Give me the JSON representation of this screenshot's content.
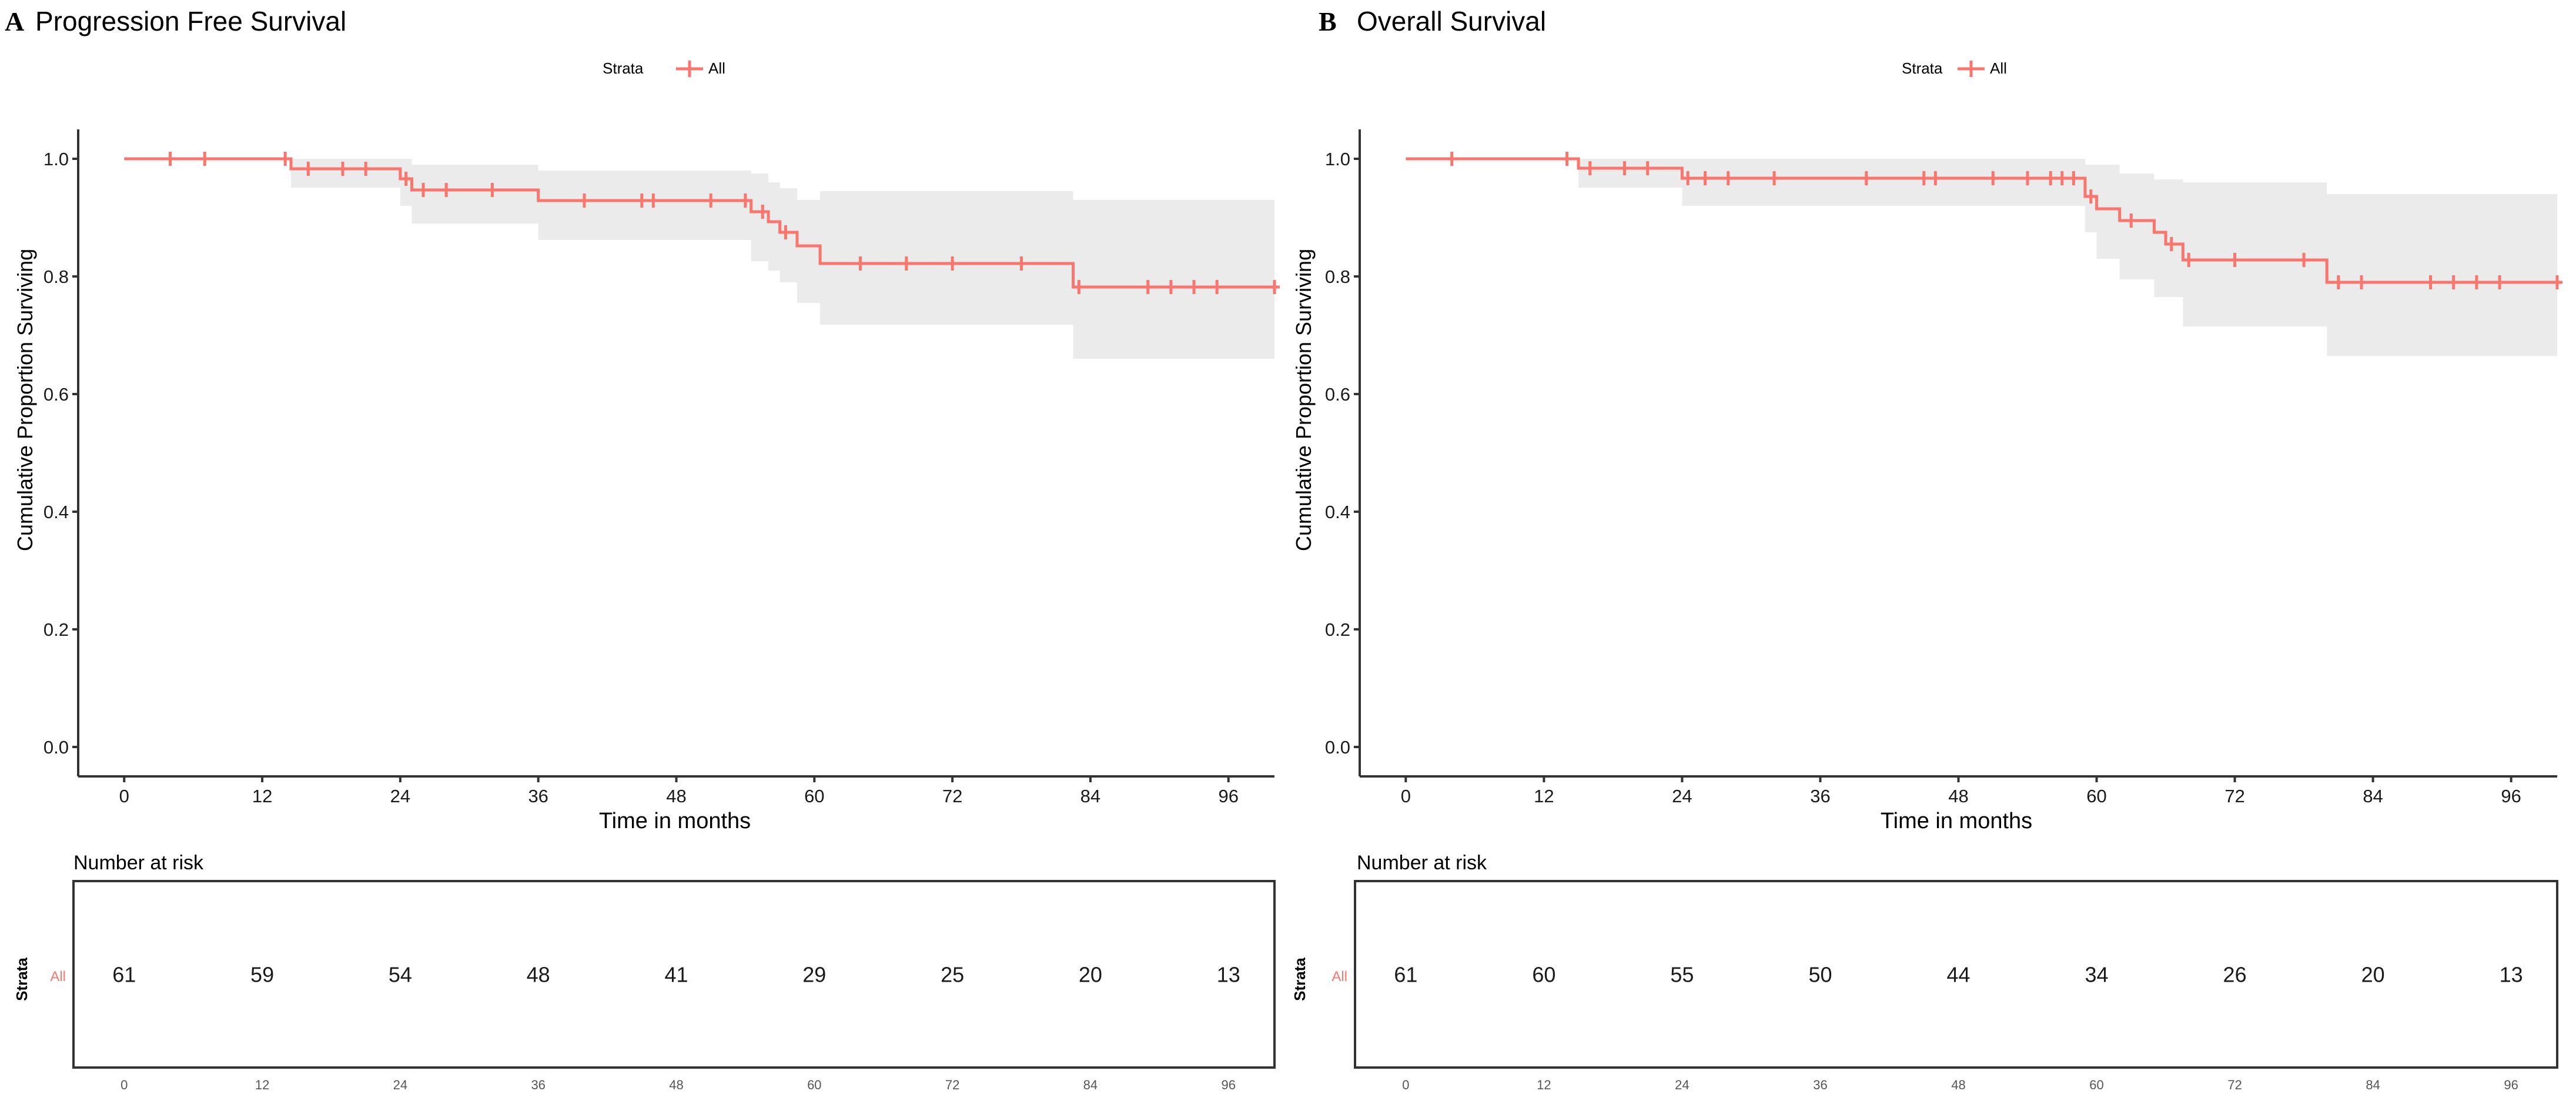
{
  "colors": {
    "curve": "#f8766d",
    "ci_band": "#ebebeb",
    "axis": "#333333",
    "text": "#1a1a1a"
  },
  "legend": {
    "title": "Strata",
    "label": "All"
  },
  "chart_data": [
    {
      "type": "line",
      "panel_letter": "A",
      "title": "Progression Free Survival",
      "xlabel": "Time in months",
      "ylabel": "Cumulative Proportion Surviving",
      "xlim": [
        -4,
        100
      ],
      "ylim": [
        -0.05,
        1.05
      ],
      "xticks": [
        0,
        12,
        24,
        36,
        48,
        60,
        72,
        84,
        96
      ],
      "yticks": [
        0.0,
        0.2,
        0.4,
        0.6,
        0.8,
        1.0
      ],
      "ytick_labels": [
        "0.0",
        "0.2",
        "0.4",
        "0.6",
        "0.8",
        "1.0"
      ],
      "series": [
        {
          "name": "All",
          "steps": [
            [
              0,
              1.0
            ],
            [
              14.5,
              0.983
            ],
            [
              24,
              0.966
            ],
            [
              25,
              0.947
            ],
            [
              36,
              0.929
            ],
            [
              54.5,
              0.91
            ],
            [
              56,
              0.893
            ],
            [
              57,
              0.875
            ],
            [
              58.5,
              0.852
            ],
            [
              60.5,
              0.822
            ],
            [
              82.5,
              0.782
            ],
            [
              100,
              0.782
            ]
          ],
          "ci": [
            [
              0,
              1.0,
              1.0
            ],
            [
              14.5,
              1.0,
              0.951
            ],
            [
              24,
              1.0,
              0.92
            ],
            [
              25,
              0.99,
              0.89
            ],
            [
              36,
              0.98,
              0.862
            ],
            [
              54.5,
              0.975,
              0.826
            ],
            [
              56,
              0.96,
              0.81
            ],
            [
              57,
              0.95,
              0.79
            ],
            [
              58.5,
              0.93,
              0.755
            ],
            [
              60.5,
              0.945,
              0.718
            ],
            [
              82.5,
              0.93,
              0.66
            ],
            [
              100,
              0.93,
              0.66
            ]
          ],
          "censored": [
            [
              4,
              1.0
            ],
            [
              7,
              1.0
            ],
            [
              14,
              1.0
            ],
            [
              16,
              0.983
            ],
            [
              19,
              0.983
            ],
            [
              21,
              0.983
            ],
            [
              24.5,
              0.966
            ],
            [
              26,
              0.947
            ],
            [
              28,
              0.947
            ],
            [
              32,
              0.947
            ],
            [
              40,
              0.929
            ],
            [
              45,
              0.929
            ],
            [
              46,
              0.929
            ],
            [
              51,
              0.929
            ],
            [
              54,
              0.929
            ],
            [
              55.5,
              0.91
            ],
            [
              57.5,
              0.875
            ],
            [
              64,
              0.822
            ],
            [
              68,
              0.822
            ],
            [
              72,
              0.822
            ],
            [
              78,
              0.822
            ],
            [
              83,
              0.782
            ],
            [
              89,
              0.782
            ],
            [
              91,
              0.782
            ],
            [
              93,
              0.782
            ],
            [
              95,
              0.782
            ],
            [
              100,
              0.782
            ]
          ]
        }
      ],
      "risk_table": {
        "title": "Number at risk",
        "y_label": "Strata",
        "strata_label": "All",
        "times": [
          0,
          12,
          24,
          36,
          48,
          60,
          72,
          84,
          96
        ],
        "counts": [
          "61",
          "59",
          "54",
          "48",
          "41",
          "29",
          "25",
          "20",
          "13"
        ]
      }
    },
    {
      "type": "line",
      "panel_letter": "B",
      "title": "Overall Survival",
      "xlabel": "Time in months",
      "ylabel": "Cumulative Proportion Surviving",
      "xlim": [
        -4,
        100
      ],
      "ylim": [
        -0.05,
        1.05
      ],
      "xticks": [
        0,
        12,
        24,
        36,
        48,
        60,
        72,
        84,
        96
      ],
      "yticks": [
        0.0,
        0.2,
        0.4,
        0.6,
        0.8,
        1.0
      ],
      "ytick_labels": [
        "0.0",
        "0.2",
        "0.4",
        "0.6",
        "0.8",
        "1.0"
      ],
      "series": [
        {
          "name": "All",
          "steps": [
            [
              0,
              1.0
            ],
            [
              15,
              0.984
            ],
            [
              24,
              0.967
            ],
            [
              59,
              0.936
            ],
            [
              60,
              0.915
            ],
            [
              62,
              0.895
            ],
            [
              65,
              0.875
            ],
            [
              66,
              0.855
            ],
            [
              67.5,
              0.828
            ],
            [
              80,
              0.79
            ],
            [
              100,
              0.79
            ]
          ],
          "ci": [
            [
              0,
              1.0,
              1.0
            ],
            [
              15,
              1.0,
              0.951
            ],
            [
              24,
              1.0,
              0.92
            ],
            [
              59,
              0.99,
              0.875
            ],
            [
              60,
              0.99,
              0.83
            ],
            [
              62,
              0.975,
              0.795
            ],
            [
              65,
              0.965,
              0.765
            ],
            [
              67.5,
              0.96,
              0.715
            ],
            [
              80,
              0.94,
              0.665
            ],
            [
              100,
              0.94,
              0.665
            ]
          ],
          "censored": [
            [
              4,
              1.0
            ],
            [
              14,
              1.0
            ],
            [
              16,
              0.984
            ],
            [
              19,
              0.984
            ],
            [
              21,
              0.984
            ],
            [
              24.5,
              0.967
            ],
            [
              26,
              0.967
            ],
            [
              28,
              0.967
            ],
            [
              32,
              0.967
            ],
            [
              40,
              0.967
            ],
            [
              45,
              0.967
            ],
            [
              46,
              0.967
            ],
            [
              51,
              0.967
            ],
            [
              54,
              0.967
            ],
            [
              56,
              0.967
            ],
            [
              57,
              0.967
            ],
            [
              58,
              0.967
            ],
            [
              59.5,
              0.936
            ],
            [
              63,
              0.895
            ],
            [
              66.5,
              0.855
            ],
            [
              68,
              0.828
            ],
            [
              72,
              0.828
            ],
            [
              78,
              0.828
            ],
            [
              81,
              0.79
            ],
            [
              83,
              0.79
            ],
            [
              89,
              0.79
            ],
            [
              91,
              0.79
            ],
            [
              93,
              0.79
            ],
            [
              95,
              0.79
            ],
            [
              100,
              0.79
            ]
          ]
        }
      ],
      "risk_table": {
        "title": "Number at risk",
        "y_label": "Strata",
        "strata_label": "All",
        "times": [
          0,
          12,
          24,
          36,
          48,
          60,
          72,
          84,
          96
        ],
        "counts": [
          "61",
          "60",
          "55",
          "50",
          "44",
          "34",
          "26",
          "20",
          "13"
        ]
      }
    }
  ]
}
